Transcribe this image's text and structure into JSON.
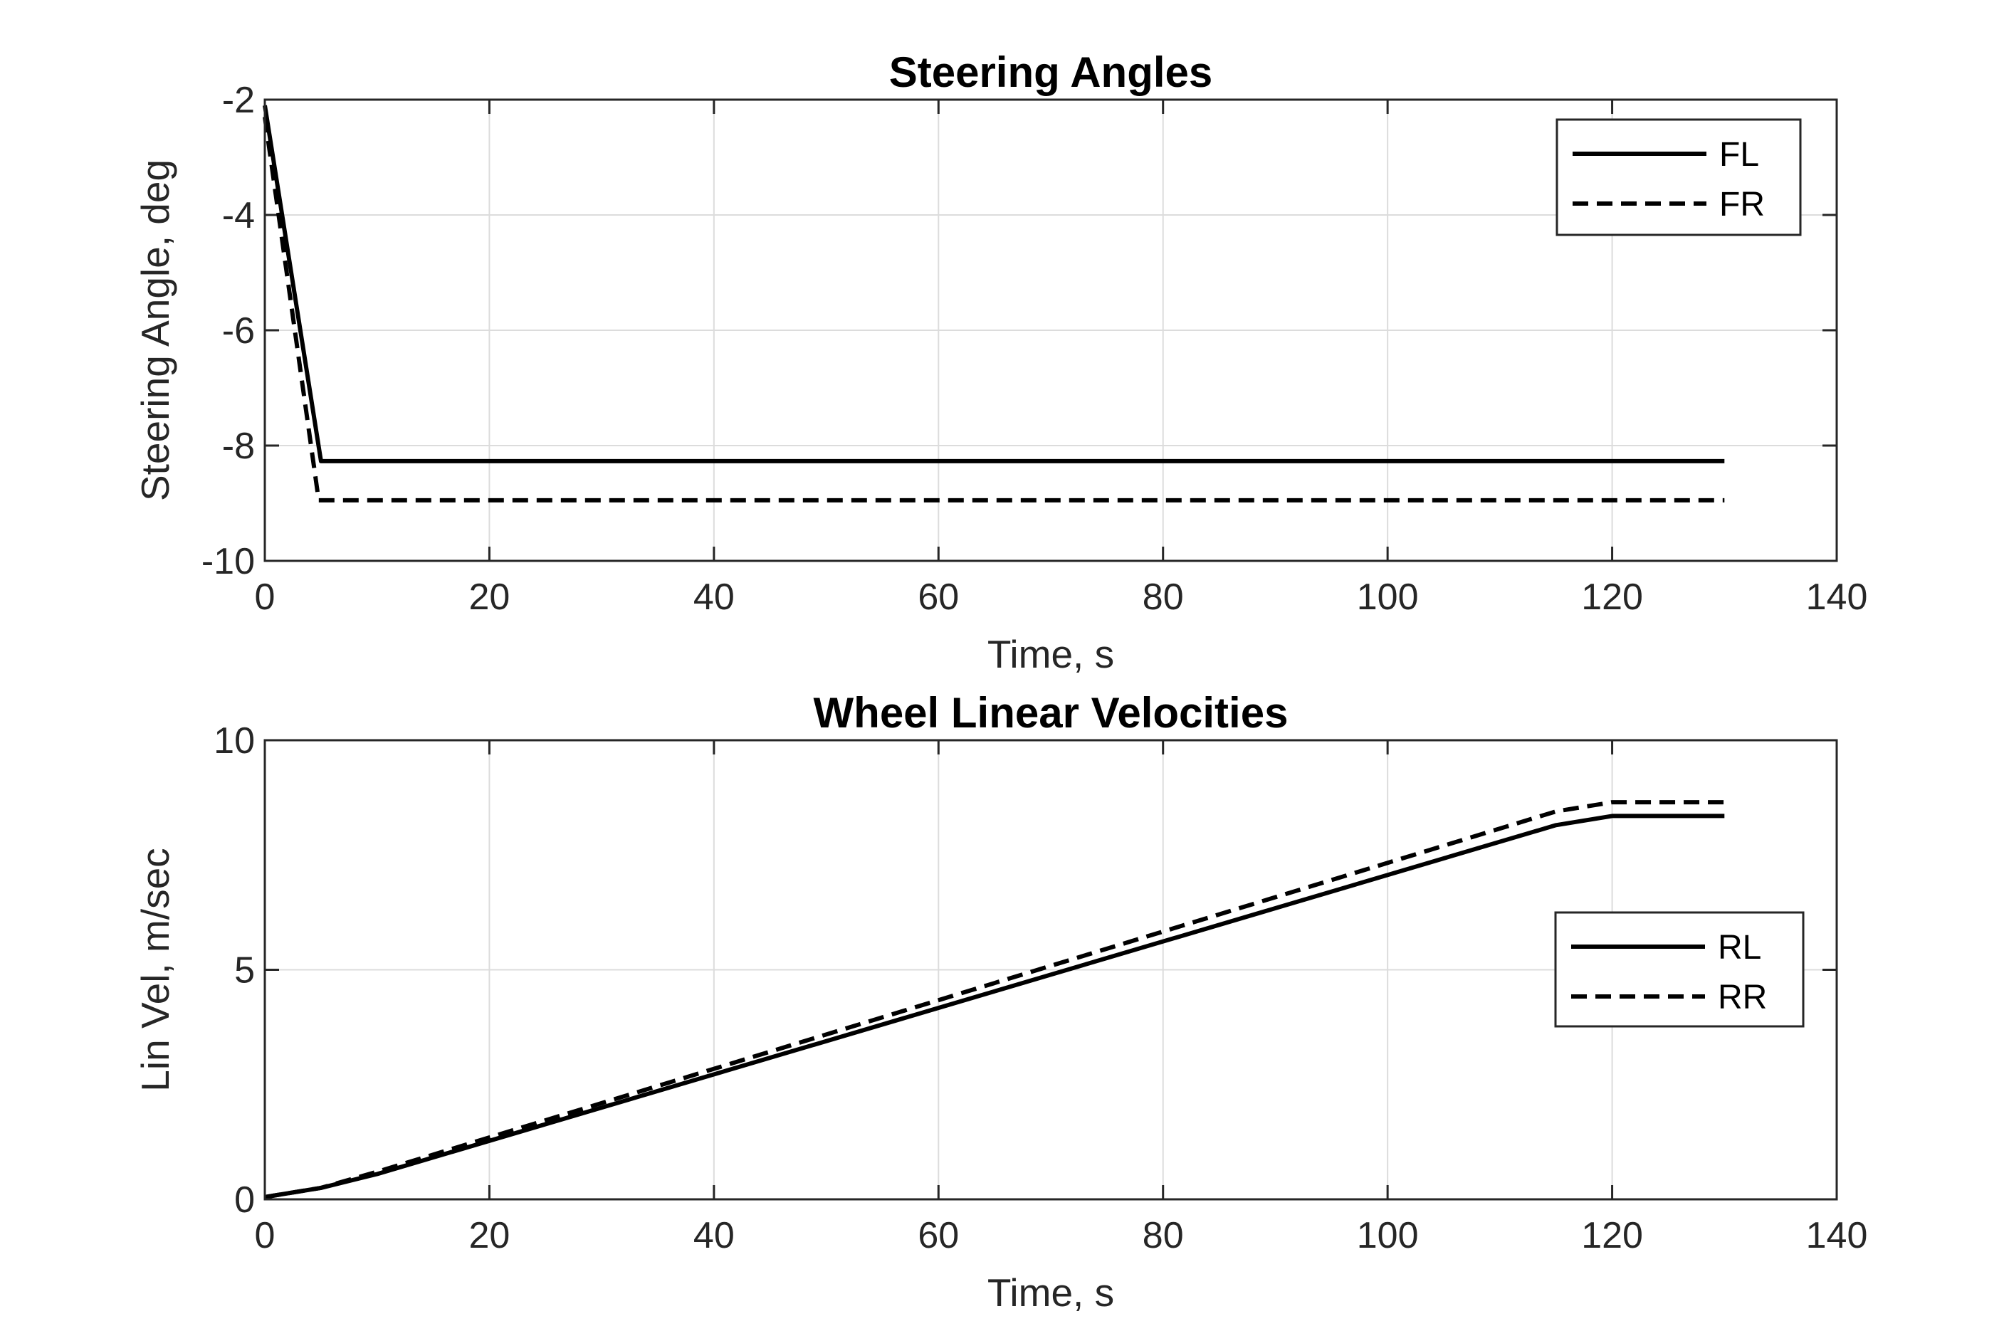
{
  "chart_data": [
    {
      "type": "line",
      "title": "Steering Angles",
      "xlabel": "Time, s",
      "ylabel": "Steering Angle, deg",
      "xlim": [
        0,
        140
      ],
      "ylim": [
        -10,
        -2
      ],
      "xticks": [
        0,
        20,
        40,
        60,
        80,
        100,
        120,
        140
      ],
      "yticks": [
        -10,
        -8,
        -6,
        -4,
        -2
      ],
      "grid": true,
      "legend": "top-right",
      "series": [
        {
          "name": "FL",
          "style": "solid",
          "x": [
            0,
            5,
            130
          ],
          "y": [
            -2.1,
            -8.27,
            -8.27
          ]
        },
        {
          "name": "FR",
          "style": "dashed",
          "x": [
            0,
            4.8,
            130
          ],
          "y": [
            -2.3,
            -8.95,
            -8.95
          ]
        }
      ]
    },
    {
      "type": "line",
      "title": "Wheel Linear Velocities",
      "xlabel": "Time, s",
      "ylabel": "Lin Vel, m/sec",
      "xlim": [
        0,
        140
      ],
      "ylim": [
        0,
        10
      ],
      "xticks": [
        0,
        20,
        40,
        60,
        80,
        100,
        120,
        140
      ],
      "yticks": [
        0,
        5,
        10
      ],
      "grid": true,
      "legend": "middle-right",
      "series": [
        {
          "name": "RL",
          "style": "solid",
          "x": [
            0,
            5,
            10,
            115,
            120,
            130
          ],
          "y": [
            0.05,
            0.25,
            0.55,
            8.15,
            8.35,
            8.35
          ]
        },
        {
          "name": "RR",
          "style": "dashed",
          "x": [
            0,
            5,
            10,
            115,
            120,
            130
          ],
          "y": [
            0.05,
            0.25,
            0.6,
            8.45,
            8.65,
            8.65
          ]
        }
      ]
    }
  ]
}
